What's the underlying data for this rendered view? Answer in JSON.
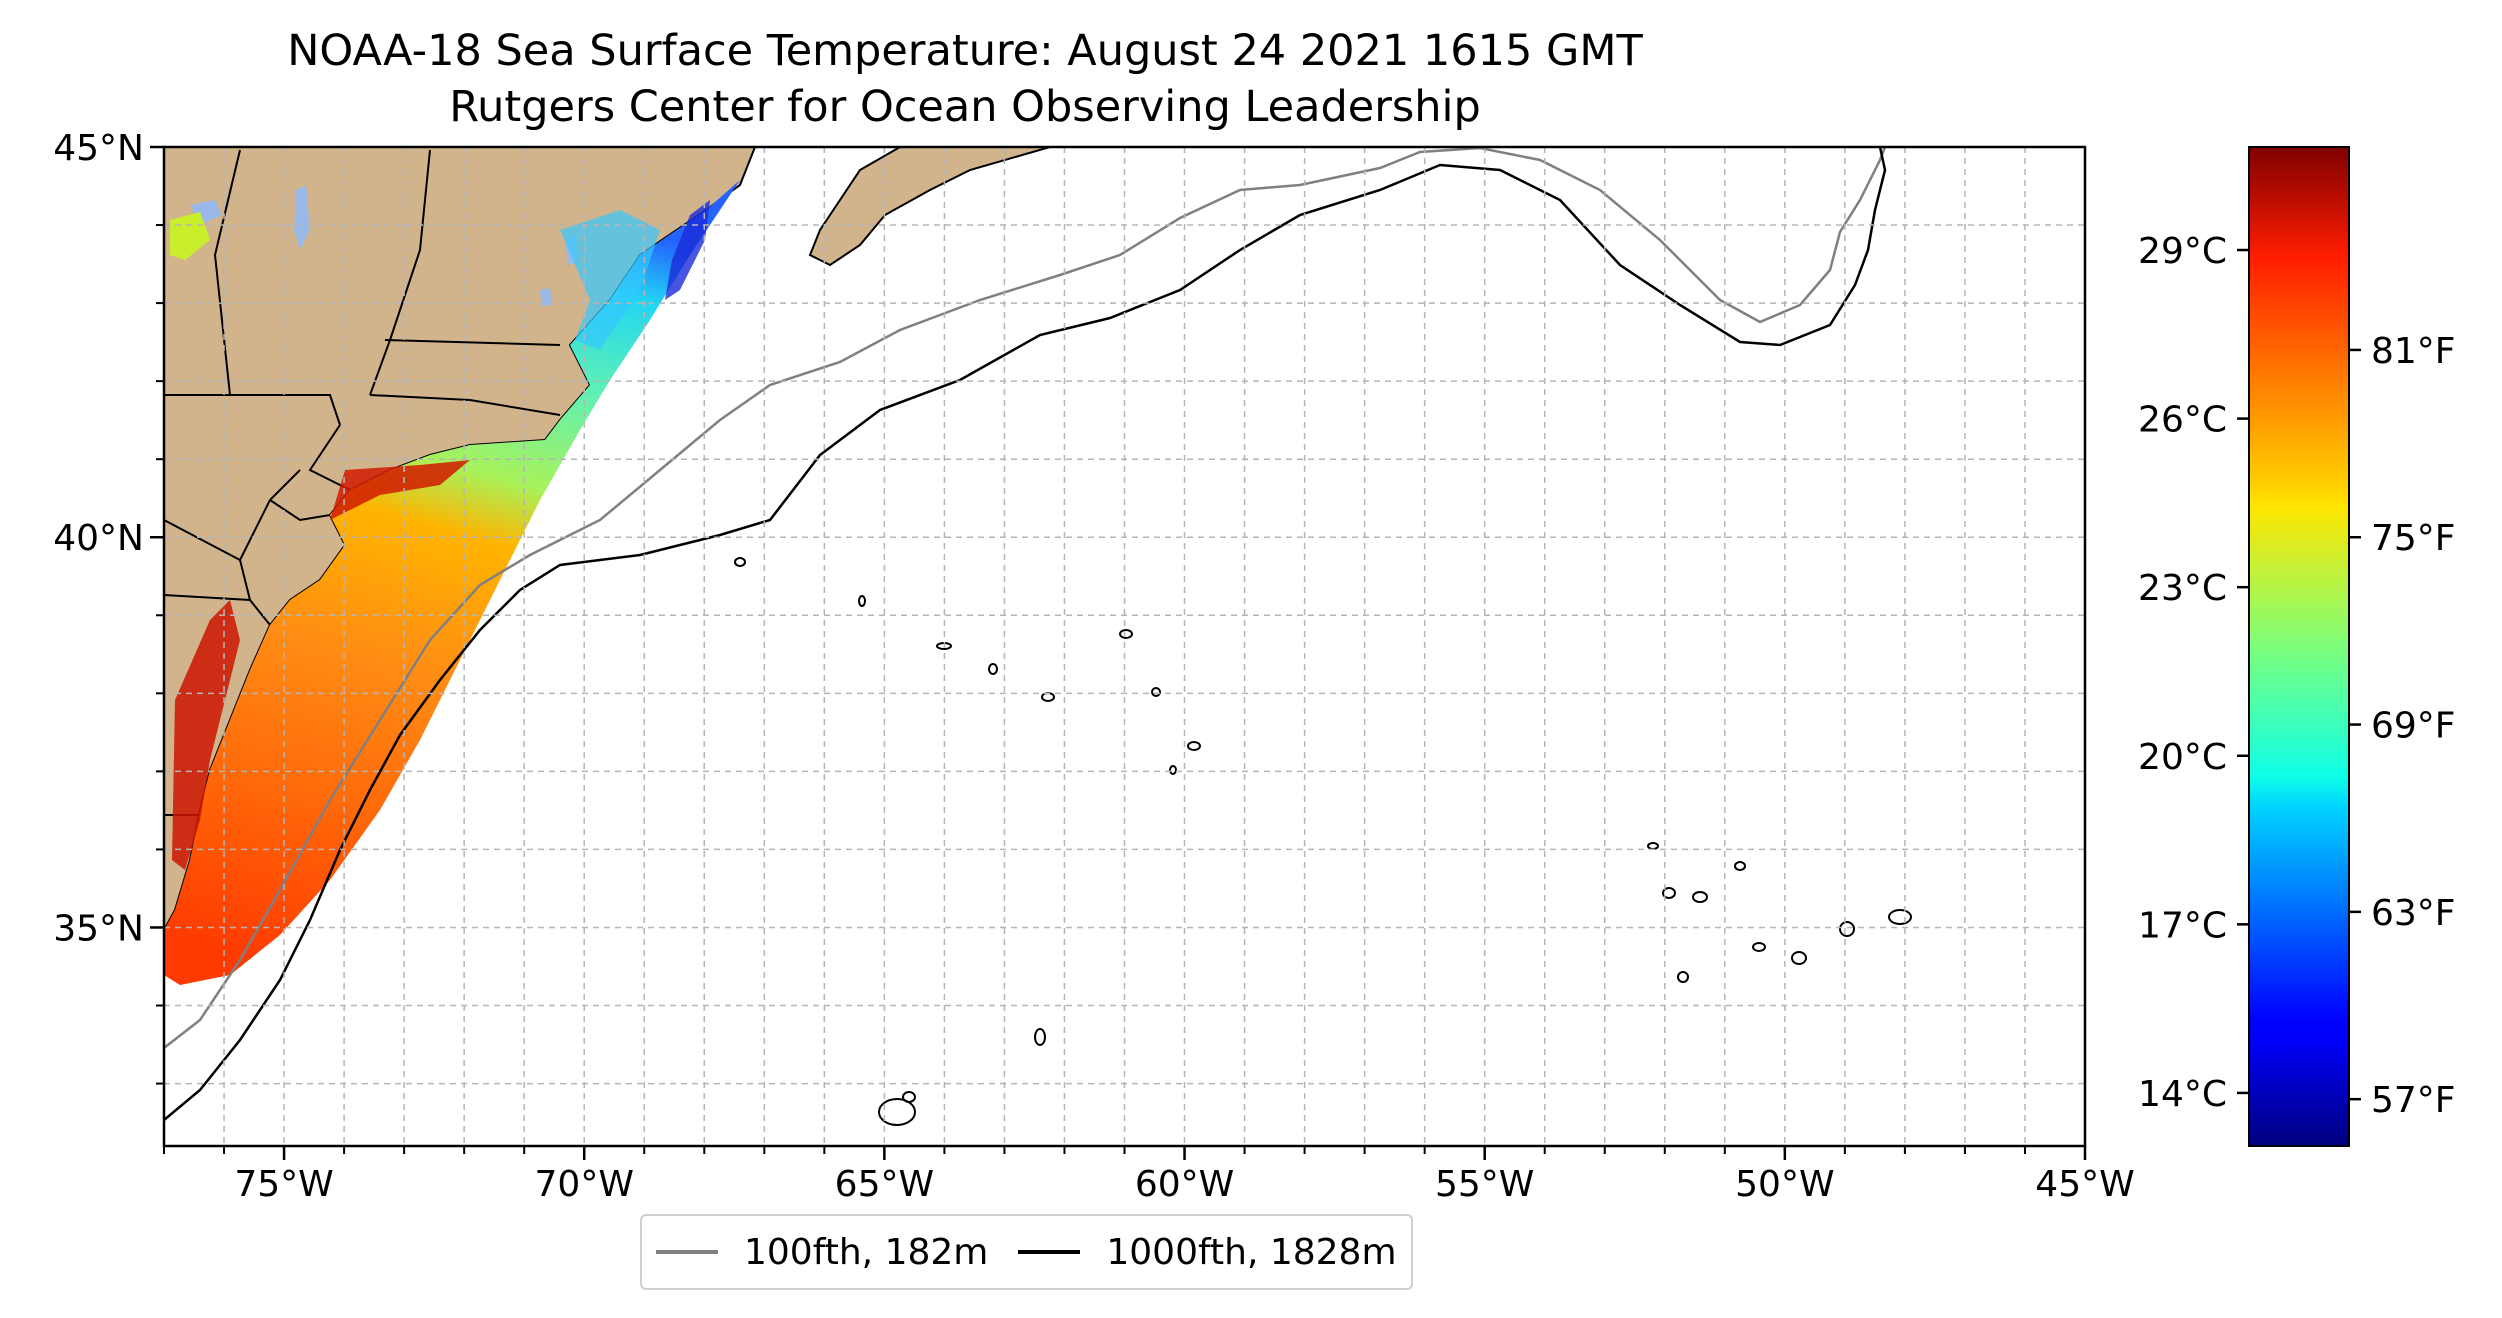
{
  "title": {
    "line1": "NOAA-18 Sea Surface Temperature: August 24 2021 1615 GMT",
    "line2": "Rutgers Center for Ocean Observing Leadership"
  },
  "map": {
    "lon_range": [
      -77,
      -45
    ],
    "lat_range": [
      32.2,
      45
    ],
    "lon_ticks": [
      {
        "value": -75,
        "label": "75°W"
      },
      {
        "value": -70,
        "label": "70°W"
      },
      {
        "value": -65,
        "label": "65°W"
      },
      {
        "value": -60,
        "label": "60°W"
      },
      {
        "value": -55,
        "label": "55°W"
      },
      {
        "value": -50,
        "label": "50°W"
      },
      {
        "value": -45,
        "label": "45°W"
      }
    ],
    "lat_ticks": [
      {
        "value": 45,
        "label": "45°N"
      },
      {
        "value": 40,
        "label": "40°N"
      },
      {
        "value": 35,
        "label": "35°N"
      }
    ],
    "gridlines": "dashed, 1° spacing",
    "land_color": "#d2b48c",
    "lake_color": "#9ab9e8"
  },
  "legend": {
    "items": [
      {
        "label": "100fth, 182m",
        "color": "#808080"
      },
      {
        "label": "1000fth, 1828m",
        "color": "#000000"
      }
    ]
  },
  "colorbar": {
    "colormap": "jet",
    "range_f": [
      55.5,
      87.5
    ],
    "celsius_ticks": [
      {
        "value": 29,
        "label": "29°C"
      },
      {
        "value": 26,
        "label": "26°C"
      },
      {
        "value": 23,
        "label": "23°C"
      },
      {
        "value": 20,
        "label": "20°C"
      },
      {
        "value": 17,
        "label": "17°C"
      },
      {
        "value": 14,
        "label": "14°C"
      }
    ],
    "fahrenheit_ticks": [
      {
        "value": 81,
        "label": "81°F"
      },
      {
        "value": 75,
        "label": "75°F"
      },
      {
        "value": 69,
        "label": "69°F"
      },
      {
        "value": 63,
        "label": "63°F"
      },
      {
        "value": 57,
        "label": "57°F"
      }
    ]
  }
}
